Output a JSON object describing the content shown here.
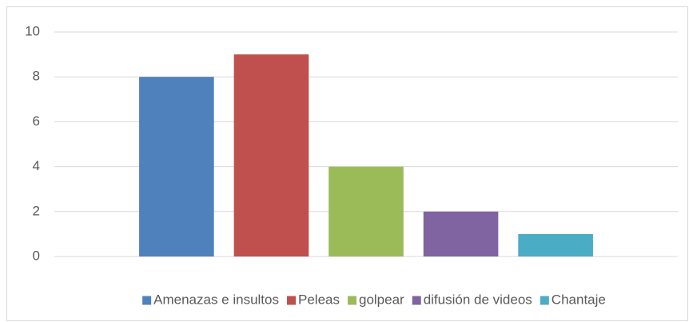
{
  "chart_data": {
    "type": "bar",
    "categories": [
      null
    ],
    "series": [
      {
        "name": "Amenazas e insultos",
        "color": "#4f81bd",
        "values": [
          8
        ]
      },
      {
        "name": "Peleas",
        "color": "#c0504d",
        "values": [
          9
        ]
      },
      {
        "name": "golpear",
        "color": "#9bbb59",
        "values": [
          4
        ]
      },
      {
        "name": "difusión de videos",
        "color": "#8064a2",
        "values": [
          2
        ]
      },
      {
        "name": "Chantaje",
        "color": "#4bacc6",
        "values": [
          1
        ]
      }
    ],
    "ylim": [
      0,
      10
    ],
    "yticks": [
      0,
      2,
      4,
      6,
      8,
      10
    ],
    "grid": true,
    "legend": "bottom"
  }
}
